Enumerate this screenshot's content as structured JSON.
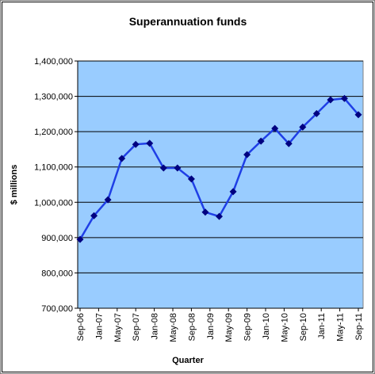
{
  "chart_data": {
    "type": "line",
    "title": "Superannuation funds",
    "x_label": "Quarter",
    "y_label": "$ millions",
    "x": [
      "2006-09",
      "2006-12",
      "2007-03",
      "2007-06",
      "2007-09",
      "2007-12",
      "2008-03",
      "2008-06",
      "2008-09",
      "2008-12",
      "2009-03",
      "2009-06",
      "2009-09",
      "2009-12",
      "2010-03",
      "2010-06",
      "2010-09",
      "2010-12",
      "2011-03",
      "2011-06",
      "2011-09"
    ],
    "series": [
      {
        "name": "Superannuation funds",
        "color": "#1f3fe6",
        "marker_color": "#000080",
        "values": [
          895000,
          962000,
          1007000,
          1124000,
          1164000,
          1167000,
          1097000,
          1097000,
          1066000,
          972000,
          960000,
          1030000,
          1135000,
          1173000,
          1209000,
          1166000,
          1213000,
          1251000,
          1290000,
          1294000,
          1248000
        ]
      }
    ],
    "xticks": [
      {
        "value": "2006-09",
        "label": "Sep-06"
      },
      {
        "value": "2007-01",
        "label": "Jan-07"
      },
      {
        "value": "2007-05",
        "label": "May-07"
      },
      {
        "value": "2007-09",
        "label": "Sep-07"
      },
      {
        "value": "2008-01",
        "label": "Jan-08"
      },
      {
        "value": "2008-05",
        "label": "May-08"
      },
      {
        "value": "2008-09",
        "label": "Sep-08"
      },
      {
        "value": "2009-01",
        "label": "Jan-09"
      },
      {
        "value": "2009-05",
        "label": "May-09"
      },
      {
        "value": "2009-09",
        "label": "Sep-09"
      },
      {
        "value": "2010-01",
        "label": "Jan-10"
      },
      {
        "value": "2010-05",
        "label": "May-10"
      },
      {
        "value": "2010-09",
        "label": "Sep-10"
      },
      {
        "value": "2011-01",
        "label": "Jan-11"
      },
      {
        "value": "2011-05",
        "label": "May-11"
      },
      {
        "value": "2011-09",
        "label": "Sep-11"
      }
    ],
    "ylim": [
      700000,
      1400000
    ],
    "yticks": [
      {
        "value": 700000,
        "label": "700,000"
      },
      {
        "value": 800000,
        "label": "800,000"
      },
      {
        "value": 900000,
        "label": "900,000"
      },
      {
        "value": 1000000,
        "label": "1,000,000"
      },
      {
        "value": 1100000,
        "label": "1,100,000"
      },
      {
        "value": 1200000,
        "label": "1,200,000"
      },
      {
        "value": 1300000,
        "label": "1,300,000"
      },
      {
        "value": 1400000,
        "label": "1,400,000"
      }
    ],
    "grid": true,
    "plot_background": "#99ccff"
  }
}
